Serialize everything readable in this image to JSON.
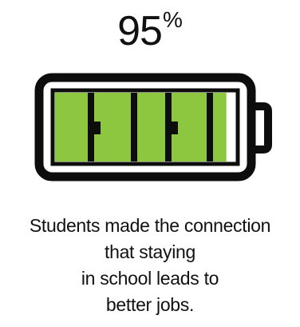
{
  "stat": {
    "number": "95",
    "unit": "%"
  },
  "battery": {
    "charge_percent": 95,
    "colors": {
      "outline": "#0d0d0d",
      "fill": "#8dc63f",
      "background": "#ffffff"
    }
  },
  "caption": {
    "lines": [
      "Students made the connection",
      "that staying",
      "in school leads to",
      "better jobs."
    ]
  }
}
